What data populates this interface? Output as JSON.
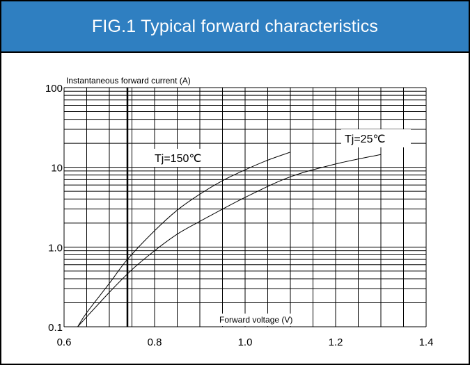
{
  "header": {
    "title": "FIG.1 Typical forward characteristics"
  },
  "colors": {
    "header_bg": "#2f7fc1",
    "header_text": "#ffffff",
    "grid": "#000000",
    "curve": "#000000"
  },
  "chart_data": {
    "type": "line",
    "title": "FIG.1 Typical forward characteristics",
    "xlabel": "Forward voltage (V)",
    "ylabel": "Instantaneous forward current (A)",
    "xlim": [
      0.6,
      1.4
    ],
    "ylim": [
      0.1,
      100
    ],
    "yscale": "log",
    "grid": true,
    "x_ticks": [
      "0.6",
      "0.8",
      "1.0",
      "1.2",
      "1.4"
    ],
    "y_ticks": [
      "0.1",
      "1.0",
      "10",
      "100"
    ],
    "series": [
      {
        "name": "Tj=150℃",
        "x": [
          0.63,
          0.65,
          0.7,
          0.74,
          0.8,
          0.85,
          0.9,
          0.95,
          1.0,
          1.05,
          1.1
        ],
        "y": [
          0.1,
          0.15,
          0.35,
          0.7,
          1.6,
          2.9,
          4.6,
          6.8,
          9.3,
          12.3,
          15.5
        ]
      },
      {
        "name": "Tj=25℃",
        "x": [
          0.63,
          0.7,
          0.75,
          0.8,
          0.85,
          0.9,
          1.0,
          1.1,
          1.2,
          1.3
        ],
        "y": [
          0.1,
          0.27,
          0.52,
          0.9,
          1.45,
          2.1,
          4.2,
          7.6,
          11.0,
          14.5
        ]
      }
    ],
    "annotations": [
      {
        "text": "Tj=150℃",
        "series": 0
      },
      {
        "text": "Tj=25℃",
        "series": 1
      }
    ]
  }
}
